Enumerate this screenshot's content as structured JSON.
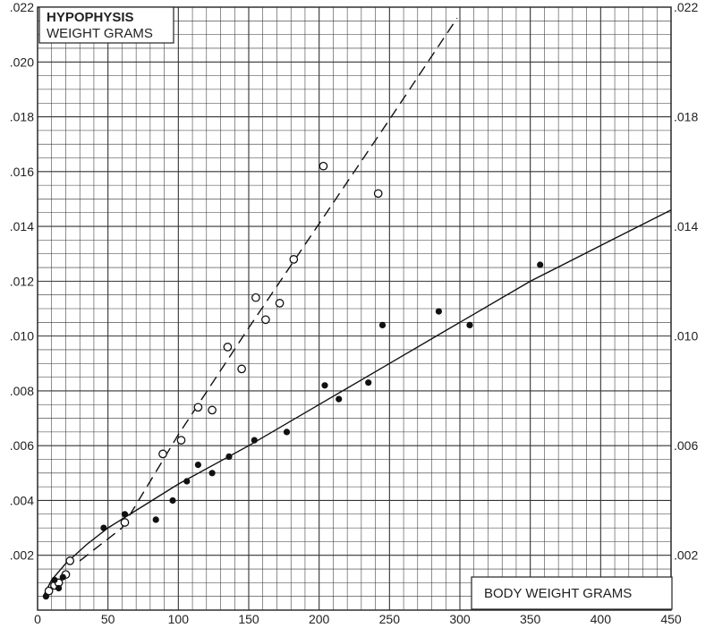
{
  "chart_data": {
    "type": "scatter",
    "title": "HYPOPHYSIS",
    "ylabel": "WEIGHT GRAMS",
    "xlabel": "BODY WEIGHT GRAMS",
    "xlim": [
      0,
      450
    ],
    "ylim": [
      0,
      0.022
    ],
    "x_ticks": [
      0,
      50,
      100,
      150,
      200,
      250,
      300,
      350,
      400,
      450
    ],
    "x_tick_labels": [
      "0",
      "50",
      "100",
      "150",
      "200",
      "250",
      "300",
      "350",
      "400",
      "450"
    ],
    "y_ticks_left": [
      0.002,
      0.004,
      0.006,
      0.008,
      0.01,
      0.012,
      0.014,
      0.016,
      0.018,
      0.02,
      0.022
    ],
    "y_tick_labels_left": [
      ".002",
      ".004",
      ".006",
      ".008",
      ".010",
      ".012",
      ".014",
      ".016",
      ".018",
      ".020",
      ".022"
    ],
    "y_ticks_right": [
      0.002,
      0.006,
      0.01,
      0.014,
      0.018,
      0.022
    ],
    "y_tick_labels_right": [
      ".002",
      ".006",
      ".010",
      ".014",
      ".018",
      ".022"
    ],
    "grid": true,
    "series": [
      {
        "marker": "open-circle",
        "fit": "dashed",
        "points": [
          [
            8,
            0.0007
          ],
          [
            12,
            0.0009
          ],
          [
            15,
            0.001
          ],
          [
            20,
            0.0013
          ],
          [
            23,
            0.0018
          ],
          [
            62,
            0.0032
          ],
          [
            89,
            0.0057
          ],
          [
            102,
            0.0062
          ],
          [
            114,
            0.0074
          ],
          [
            124,
            0.0073
          ],
          [
            135,
            0.0096
          ],
          [
            145,
            0.0088
          ],
          [
            155,
            0.0114
          ],
          [
            162,
            0.0106
          ],
          [
            172,
            0.0112
          ],
          [
            182,
            0.0128
          ],
          [
            203,
            0.0162
          ],
          [
            242,
            0.0152
          ]
        ],
        "fit_points": [
          [
            30,
            0.0018
          ],
          [
            60,
            0.003
          ],
          [
            100,
            0.0064
          ],
          [
            150,
            0.0103
          ],
          [
            200,
            0.0141
          ],
          [
            250,
            0.0179
          ],
          [
            298,
            0.0216
          ]
        ]
      },
      {
        "marker": "filled-circle",
        "fit": "solid",
        "points": [
          [
            6,
            0.0005
          ],
          [
            12,
            0.0011
          ],
          [
            15,
            0.0008
          ],
          [
            18,
            0.0012
          ],
          [
            47,
            0.003
          ],
          [
            62,
            0.0035
          ],
          [
            84,
            0.0033
          ],
          [
            96,
            0.004
          ],
          [
            106,
            0.0047
          ],
          [
            114,
            0.0053
          ],
          [
            124,
            0.005
          ],
          [
            136,
            0.0056
          ],
          [
            154,
            0.0062
          ],
          [
            177,
            0.0065
          ],
          [
            204,
            0.0082
          ],
          [
            214,
            0.0077
          ],
          [
            235,
            0.0083
          ],
          [
            245,
            0.0104
          ],
          [
            285,
            0.0109
          ],
          [
            307,
            0.0104
          ],
          [
            357,
            0.0126
          ]
        ],
        "fit_points": [
          [
            4,
            0.0005
          ],
          [
            10,
            0.0011
          ],
          [
            20,
            0.0017
          ],
          [
            35,
            0.0024
          ],
          [
            50,
            0.003
          ],
          [
            75,
            0.0038
          ],
          [
            100,
            0.0046
          ],
          [
            150,
            0.006
          ],
          [
            200,
            0.0075
          ],
          [
            250,
            0.009
          ],
          [
            300,
            0.0105
          ],
          [
            350,
            0.012
          ],
          [
            400,
            0.0133
          ],
          [
            450,
            0.0146
          ]
        ]
      }
    ]
  }
}
